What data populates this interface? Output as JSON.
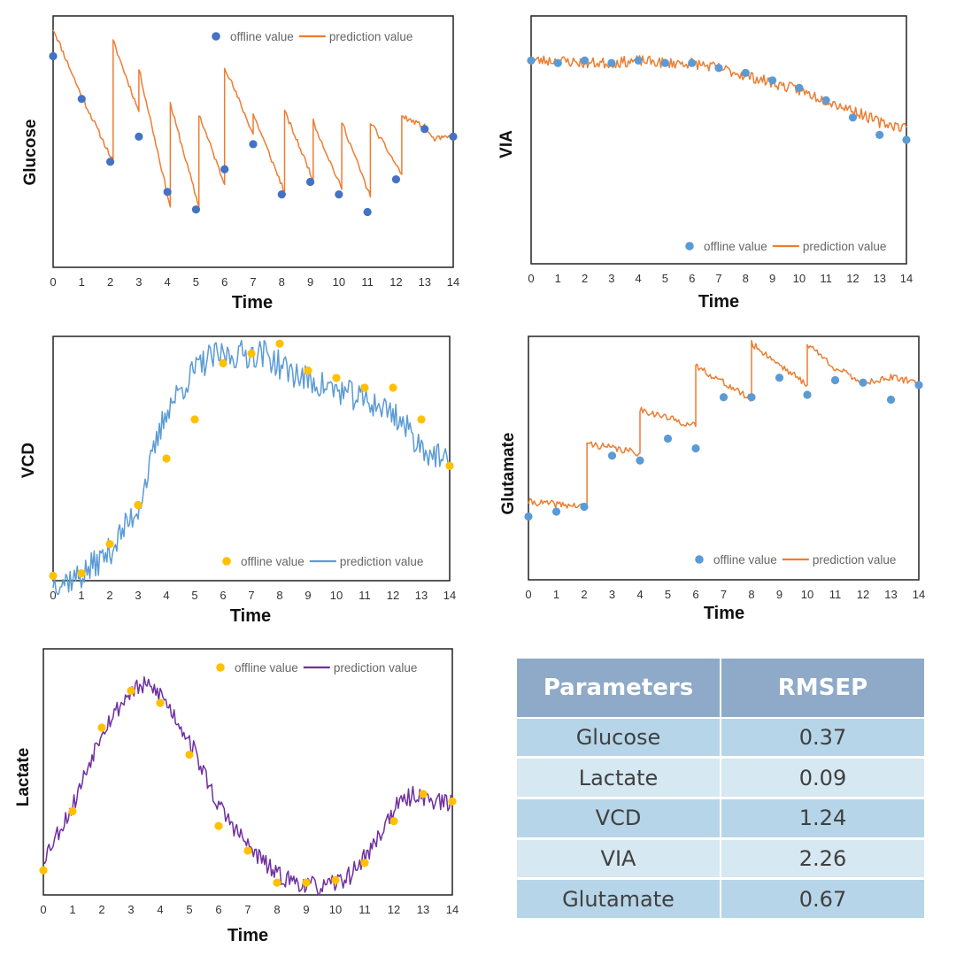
{
  "chart_data": [
    {
      "type": "line",
      "title": "",
      "xlabel": "Time",
      "ylabel": "Glucose",
      "xlim": [
        0,
        14
      ],
      "ylim": [
        0,
        1
      ],
      "xticks": [
        "0",
        "1",
        "2",
        "3",
        "4",
        "5",
        "6",
        "7",
        "8",
        "9",
        "10",
        "11",
        "12",
        "13",
        "14"
      ],
      "legend": {
        "position": "top-right",
        "offline_label": "offline value",
        "prediction_label": "prediction value"
      },
      "colors": {
        "offline": "#4472c4",
        "prediction": "#ed7d31"
      },
      "offline": {
        "x": [
          0,
          1,
          2,
          3,
          4,
          5,
          6,
          7,
          8,
          9,
          10,
          11,
          12,
          13,
          14
        ],
        "y": [
          0.84,
          0.67,
          0.42,
          0.52,
          0.3,
          0.23,
          0.39,
          0.49,
          0.29,
          0.34,
          0.29,
          0.22,
          0.35,
          0.55,
          0.52
        ]
      },
      "prediction_knots": [
        [
          0,
          0.95
        ],
        [
          1.0,
          0.68
        ],
        [
          2.1,
          0.42
        ],
        [
          2.1,
          0.9
        ],
        [
          3.0,
          0.62
        ],
        [
          3.0,
          0.79
        ],
        [
          4.1,
          0.24
        ],
        [
          4.1,
          0.65
        ],
        [
          5.1,
          0.24
        ],
        [
          5.1,
          0.61
        ],
        [
          6.0,
          0.33
        ],
        [
          6.0,
          0.8
        ],
        [
          7.0,
          0.53
        ],
        [
          7.0,
          0.61
        ],
        [
          8.1,
          0.3
        ],
        [
          8.1,
          0.62
        ],
        [
          9.1,
          0.35
        ],
        [
          9.1,
          0.58
        ],
        [
          10.1,
          0.31
        ],
        [
          10.1,
          0.58
        ],
        [
          11.1,
          0.28
        ],
        [
          11.1,
          0.58
        ],
        [
          12.2,
          0.37
        ],
        [
          12.2,
          0.6
        ],
        [
          13.0,
          0.56
        ],
        [
          13.3,
          0.51
        ],
        [
          14.0,
          0.52
        ]
      ]
    },
    {
      "type": "line",
      "title": "",
      "xlabel": "Time",
      "ylabel": "VIA",
      "xlim": [
        0,
        14
      ],
      "ylim": [
        0,
        1
      ],
      "xticks": [
        "0",
        "1",
        "2",
        "3",
        "4",
        "5",
        "6",
        "7",
        "8",
        "9",
        "10",
        "11",
        "12",
        "13",
        "14"
      ],
      "legend": {
        "position": "bottom-right",
        "offline_label": "offline value",
        "prediction_label": "prediction value"
      },
      "colors": {
        "offline": "#5b9bd5",
        "prediction": "#ed7d31"
      },
      "offline": {
        "x": [
          0,
          1,
          2,
          3,
          4,
          5,
          6,
          7,
          8,
          9,
          10,
          11,
          12,
          13,
          14
        ],
        "y": [
          0.82,
          0.81,
          0.82,
          0.81,
          0.82,
          0.81,
          0.81,
          0.79,
          0.77,
          0.74,
          0.71,
          0.66,
          0.59,
          0.52,
          0.5
        ]
      },
      "prediction_knots": [
        [
          0,
          0.82
        ],
        [
          1,
          0.82
        ],
        [
          2,
          0.81
        ],
        [
          3,
          0.81
        ],
        [
          4,
          0.82
        ],
        [
          5,
          0.81
        ],
        [
          6,
          0.81
        ],
        [
          7,
          0.79
        ],
        [
          8,
          0.76
        ],
        [
          9,
          0.73
        ],
        [
          10,
          0.7
        ],
        [
          11,
          0.66
        ],
        [
          12,
          0.62
        ],
        [
          13,
          0.57
        ],
        [
          14,
          0.55
        ]
      ]
    },
    {
      "type": "line",
      "title": "",
      "xlabel": "Time",
      "ylabel": "VCD",
      "xlim": [
        0,
        14
      ],
      "ylim": [
        0,
        1
      ],
      "xticks": [
        "0",
        "1",
        "2",
        "3",
        "4",
        "5",
        "6",
        "7",
        "8",
        "9",
        "10",
        "11",
        "12",
        "13",
        "14"
      ],
      "legend": {
        "position": "bottom-right",
        "offline_label": "offline value",
        "prediction_label": "prediction value"
      },
      "colors": {
        "offline": "#ffc000",
        "prediction": "#5b9bd5"
      },
      "offline": {
        "x": [
          0,
          1,
          2,
          3,
          4,
          5,
          6,
          7,
          8,
          9,
          10,
          11,
          12,
          13,
          14
        ],
        "y": [
          0.02,
          0.03,
          0.15,
          0.31,
          0.5,
          0.66,
          0.89,
          0.93,
          0.97,
          0.86,
          0.83,
          0.79,
          0.79,
          0.66,
          0.47
        ]
      },
      "prediction_knots": [
        [
          0,
          0.0
        ],
        [
          0.4,
          0.0
        ],
        [
          1,
          0.02
        ],
        [
          2,
          0.12
        ],
        [
          3,
          0.3
        ],
        [
          3.5,
          0.5
        ],
        [
          4,
          0.7
        ],
        [
          5,
          0.86
        ],
        [
          5.5,
          0.91
        ],
        [
          6,
          0.92
        ],
        [
          7,
          0.93
        ],
        [
          7.5,
          0.93
        ],
        [
          8,
          0.88
        ],
        [
          9,
          0.82
        ],
        [
          10,
          0.78
        ],
        [
          11,
          0.74
        ],
        [
          12,
          0.69
        ],
        [
          13,
          0.55
        ],
        [
          14,
          0.47
        ]
      ]
    },
    {
      "type": "line",
      "title": "",
      "xlabel": "Time",
      "ylabel": "Glutamate",
      "xlim": [
        0,
        14
      ],
      "ylim": [
        0,
        1
      ],
      "xticks": [
        "0",
        "1",
        "2",
        "3",
        "4",
        "5",
        "6",
        "7",
        "8",
        "9",
        "10",
        "11",
        "12",
        "13",
        "14"
      ],
      "legend": {
        "position": "bottom-right",
        "offline_label": "offline value",
        "prediction_label": "prediction value"
      },
      "colors": {
        "offline": "#5b9bd5",
        "prediction": "#ed7d31"
      },
      "offline": {
        "x": [
          0,
          1,
          2,
          3,
          4,
          5,
          6,
          7,
          8,
          9,
          10,
          11,
          12,
          13,
          14
        ],
        "y": [
          0.26,
          0.28,
          0.3,
          0.51,
          0.49,
          0.58,
          0.54,
          0.75,
          0.75,
          0.83,
          0.76,
          0.82,
          0.81,
          0.74,
          0.8
        ]
      },
      "prediction_knots": [
        [
          0,
          0.32
        ],
        [
          2.1,
          0.3
        ],
        [
          2.1,
          0.56
        ],
        [
          4.0,
          0.52
        ],
        [
          4.0,
          0.7
        ],
        [
          6.0,
          0.63
        ],
        [
          6.0,
          0.88
        ],
        [
          8.0,
          0.74
        ],
        [
          8.0,
          0.97
        ],
        [
          10.0,
          0.8
        ],
        [
          10.0,
          0.97
        ],
        [
          11.0,
          0.87
        ],
        [
          12.0,
          0.81
        ],
        [
          13.0,
          0.83
        ],
        [
          14.0,
          0.81
        ]
      ]
    },
    {
      "type": "line",
      "title": "",
      "xlabel": "Time",
      "ylabel": "Lactate",
      "xlim": [
        0,
        14
      ],
      "ylim": [
        0,
        1
      ],
      "xticks": [
        "0",
        "1",
        "2",
        "3",
        "4",
        "5",
        "6",
        "7",
        "8",
        "9",
        "10",
        "11",
        "12",
        "13",
        "14"
      ],
      "legend": {
        "position": "top-right",
        "offline_label": "offline value",
        "prediction_label": "prediction value"
      },
      "colors": {
        "offline": "#ffc000",
        "prediction": "#7030a0"
      },
      "offline": {
        "x": [
          0,
          1,
          2,
          3,
          4,
          5,
          6,
          7,
          8,
          9,
          10,
          11,
          12,
          13,
          14
        ],
        "y": [
          0.1,
          0.34,
          0.68,
          0.83,
          0.78,
          0.57,
          0.28,
          0.18,
          0.05,
          0.05,
          0.06,
          0.13,
          0.3,
          0.41,
          0.38
        ]
      },
      "prediction_knots": [
        [
          0,
          0.15
        ],
        [
          1,
          0.36
        ],
        [
          2,
          0.67
        ],
        [
          3,
          0.83
        ],
        [
          3.5,
          0.85
        ],
        [
          4,
          0.82
        ],
        [
          5,
          0.63
        ],
        [
          6,
          0.36
        ],
        [
          7,
          0.2
        ],
        [
          8,
          0.08
        ],
        [
          9,
          0.04
        ],
        [
          9.7,
          0.03
        ],
        [
          10.5,
          0.08
        ],
        [
          11.3,
          0.2
        ],
        [
          12,
          0.35
        ],
        [
          12.7,
          0.41
        ],
        [
          13.5,
          0.38
        ],
        [
          14,
          0.37
        ]
      ]
    }
  ],
  "table": {
    "headers": [
      "Parameters",
      "RMSEP"
    ],
    "rows": [
      [
        "Glucose",
        "0.37"
      ],
      [
        "Lactate",
        "0.09"
      ],
      [
        "VCD",
        "1.24"
      ],
      [
        "VIA",
        "2.26"
      ],
      [
        "Glutamate",
        "0.67"
      ]
    ]
  }
}
